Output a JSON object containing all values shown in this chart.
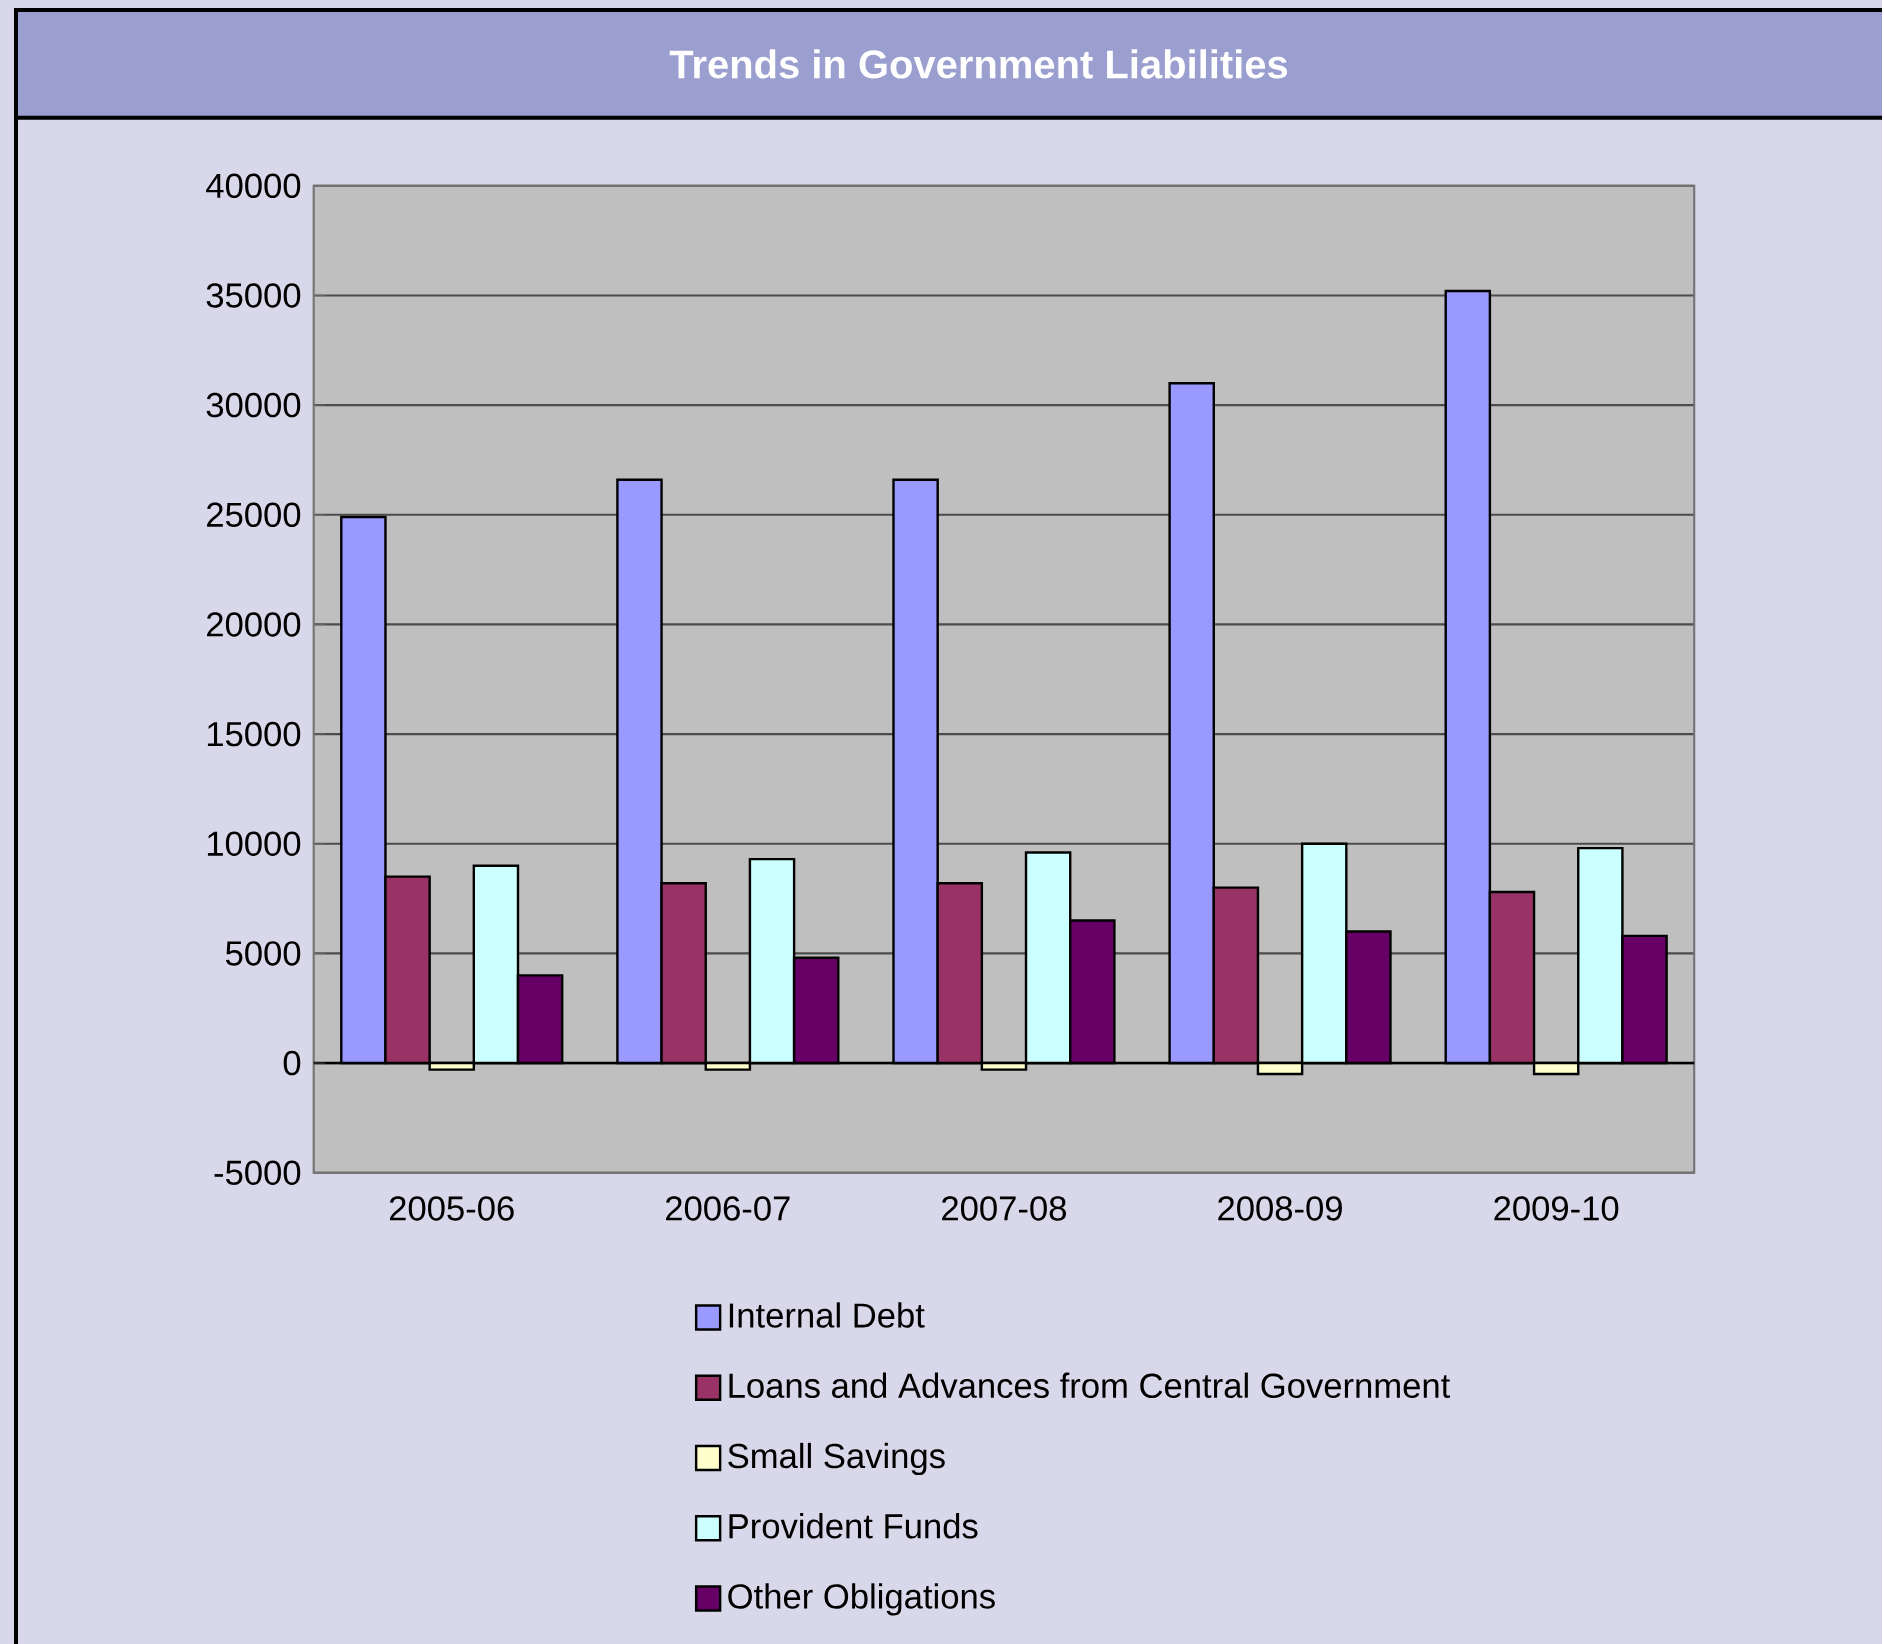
{
  "chart_data": {
    "type": "bar",
    "title": "Trends in Government Liabilities",
    "categories": [
      "2005-06",
      "2006-07",
      "2007-08",
      "2008-09",
      "2009-10"
    ],
    "series": [
      {
        "name": "Internal Debt",
        "color": "#9999ff",
        "values": [
          24900,
          26600,
          26600,
          31000,
          35200
        ]
      },
      {
        "name": "Loans and Advances from Central Government",
        "color": "#993366",
        "values": [
          8500,
          8200,
          8200,
          8000,
          7800
        ]
      },
      {
        "name": "Small Savings",
        "color": "#ffffcc",
        "values": [
          -300,
          -300,
          -300,
          -500,
          -500
        ]
      },
      {
        "name": "Provident Funds",
        "color": "#ccffff",
        "values": [
          9000,
          9300,
          9600,
          10000,
          9800
        ]
      },
      {
        "name": "Other Obligations",
        "color": "#660066",
        "values": [
          4000,
          4800,
          6500,
          6000,
          5800
        ]
      }
    ],
    "ylim": [
      -5000,
      40000
    ],
    "yticks": [
      -5000,
      0,
      5000,
      10000,
      15000,
      20000,
      25000,
      30000,
      35000,
      40000
    ],
    "grid": "y",
    "legend": "bottom"
  }
}
